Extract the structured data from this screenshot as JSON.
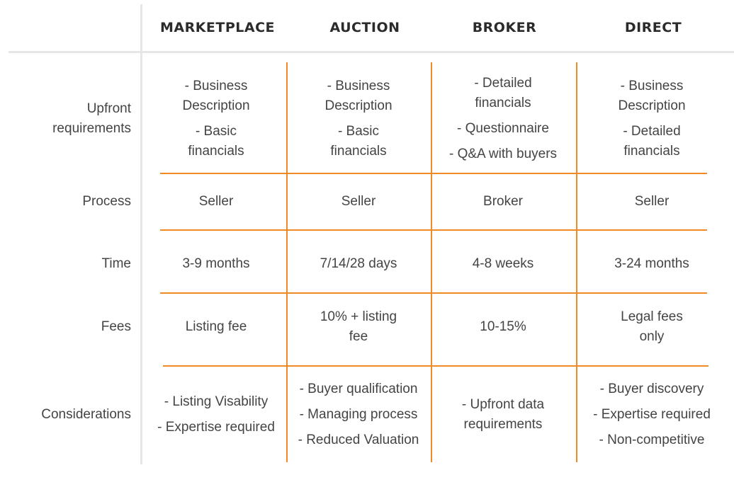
{
  "columns": [
    "MARKETPLACE",
    "AUCTION",
    "BROKER",
    "DIRECT"
  ],
  "rows": [
    {
      "label": [
        "Upfront",
        "requirements"
      ],
      "cells": [
        [
          [
            "- Business",
            "Description"
          ],
          [
            "- Basic",
            "financials"
          ]
        ],
        [
          [
            "- Business",
            "Description"
          ],
          [
            "- Basic",
            "financials"
          ]
        ],
        [
          [
            "- Detailed",
            "financials"
          ],
          [
            "- Questionnaire"
          ],
          [
            "- Q&A with buyers"
          ]
        ],
        [
          [
            "- Business",
            "Description"
          ],
          [
            "- Detailed",
            "financials"
          ]
        ]
      ]
    },
    {
      "label": [
        "Process"
      ],
      "cells": [
        [
          [
            "Seller"
          ]
        ],
        [
          [
            "Seller"
          ]
        ],
        [
          [
            "Broker"
          ]
        ],
        [
          [
            "Seller"
          ]
        ]
      ]
    },
    {
      "label": [
        "Time"
      ],
      "cells": [
        [
          [
            "3-9 months"
          ]
        ],
        [
          [
            "7/14/28 days"
          ]
        ],
        [
          [
            "4-8 weeks"
          ]
        ],
        [
          [
            "3-24 months"
          ]
        ]
      ]
    },
    {
      "label": [
        "Fees"
      ],
      "cells": [
        [
          [
            "Listing fee"
          ]
        ],
        [
          [
            "10% + listing",
            "fee"
          ]
        ],
        [
          [
            "10-15%"
          ]
        ],
        [
          [
            "Legal fees",
            "only"
          ]
        ]
      ]
    },
    {
      "label": [
        "Considerations"
      ],
      "cells": [
        [
          [
            "- Listing Visability"
          ],
          [
            "- Expertise required"
          ]
        ],
        [
          [
            "- Buyer qualification"
          ],
          [
            "- Managing process"
          ],
          [
            "- Reduced Valuation"
          ]
        ],
        [
          [
            "- Upfront data",
            "requirements"
          ]
        ],
        [
          [
            "- Buyer discovery"
          ],
          [
            "- Expertise required"
          ],
          [
            "- Non-competitive"
          ]
        ]
      ]
    }
  ]
}
